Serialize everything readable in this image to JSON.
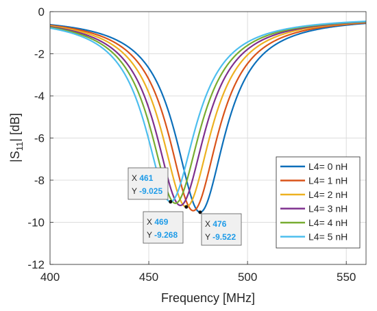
{
  "chart_data": {
    "type": "line",
    "xlabel": "Frequency [MHz]",
    "ylabel_main": "|S",
    "ylabel_sub": "11",
    "ylabel_end": "| [dB]",
    "xlim": [
      400,
      560
    ],
    "ylim": [
      -12,
      0
    ],
    "xticks": [
      400,
      450,
      500,
      550
    ],
    "yticks": [
      0,
      -2,
      -4,
      -6,
      -8,
      -10,
      -12
    ],
    "grid": true,
    "legend_position": "bottom-right",
    "curve_model": {
      "half_width_mhz": 15.5,
      "asymptote_db": 0.25
    },
    "series": [
      {
        "name": "L4= 0 nH",
        "color": "#0c6fba",
        "resonance_mhz": 476,
        "min_db": -9.522
      },
      {
        "name": "L4= 1 nH",
        "color": "#d95319",
        "resonance_mhz": 472.5,
        "min_db": -9.45
      },
      {
        "name": "L4= 2 nH",
        "color": "#edb120",
        "resonance_mhz": 469,
        "min_db": -9.268
      },
      {
        "name": "L4= 3 nH",
        "color": "#7e2f8e",
        "resonance_mhz": 466,
        "min_db": -9.2
      },
      {
        "name": "L4= 4 nH",
        "color": "#77ac30",
        "resonance_mhz": 463.5,
        "min_db": -9.1
      },
      {
        "name": "L4= 5 nH",
        "color": "#4dbeee",
        "resonance_mhz": 461,
        "min_db": -9.025
      }
    ],
    "datatips": [
      {
        "x_label": "X",
        "x_value": "461",
        "y_label": "Y",
        "y_value": "-9.025",
        "px": 461,
        "py": -9.025
      },
      {
        "x_label": "X",
        "x_value": "469",
        "y_label": "Y",
        "y_value": "-9.268",
        "px": 469,
        "py": -9.268
      },
      {
        "x_label": "X",
        "x_value": "476",
        "y_label": "Y",
        "y_value": "-9.522",
        "px": 476,
        "py": -9.522
      }
    ]
  }
}
